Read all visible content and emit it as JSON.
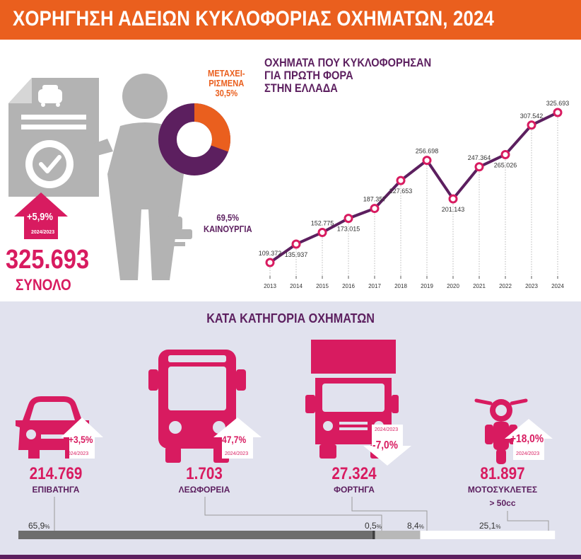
{
  "header": {
    "title": "ΧΟΡΗΓΗΣΗ ΑΔΕΙΩΝ ΚΥΚΛΟΦΟΡΙΑΣ ΟΧΗΜΑΤΩΝ, 2024"
  },
  "total": {
    "value": "325.693",
    "label": "ΣΥΝΟΛΟ",
    "change": "+5,9%",
    "change_period": "2024/2023"
  },
  "donut": {
    "used_label_1": "ΜΕΤΑΧΕΙ-",
    "used_label_2": "ΡΙΣΜΕΝΑ",
    "used_pct": "30,5%",
    "new_pct": "69,5%",
    "new_label": "ΚΑΙΝΟΥΡΓΙΑ",
    "used_share": 30.5,
    "new_share": 69.5,
    "colors": {
      "used": "#ea5f1e",
      "new": "#5c1f5f"
    }
  },
  "line_chart": {
    "title_lines": [
      "ΟΧΗΜΑΤΑ ΠΟΥ ΚΥΚΛΟΦΟΡΗΣΑΝ",
      "ΓΙΑ ΠΡΩΤΗ ΦΟΡΑ",
      "ΣΤΗΝ ΕΛΛΑΔΑ"
    ]
  },
  "chart_data": {
    "type": "line",
    "title": "ΟΧΗΜΑΤΑ ΠΟΥ ΚΥΚΛΟΦΟΡΗΣΑΝ ΓΙΑ ΠΡΩΤΗ ΦΟΡΑ ΣΤΗΝ ΕΛΛΑΔΑ",
    "x": [
      "2013",
      "2014",
      "2015",
      "2016",
      "2017",
      "2018",
      "2019",
      "2020",
      "2021",
      "2022",
      "2023",
      "2024"
    ],
    "values": [
      109372,
      135937,
      152775,
      173015,
      187357,
      227653,
      256698,
      201143,
      247364,
      265026,
      307542,
      325693
    ],
    "value_labels": [
      "109.372",
      "135.937",
      "152.775",
      "173.015",
      "187.357",
      "227.653",
      "256.698",
      "201.143",
      "247.364",
      "265.026",
      "307.542",
      "325.693"
    ],
    "label_above": [
      true,
      false,
      true,
      false,
      true,
      false,
      true,
      false,
      true,
      false,
      true,
      true
    ],
    "ylim": [
      90000,
      340000
    ],
    "grid": false,
    "colors": {
      "line": "#5c1f5f",
      "marker": "#d81b60"
    }
  },
  "categories": {
    "title": "ΚΑΤΑ ΚΑΤΗΓΟΡΙΑ ΟΧΗΜΑΤΩΝ",
    "items": [
      {
        "name": "passenger",
        "value": "214.769",
        "label": "ΕΠΙΒΑΤΗΓΑ",
        "label2": "",
        "change": "+3,5%",
        "change_period": "2024/2023",
        "direction": "up",
        "share_label": "65,9",
        "share": 65.9
      },
      {
        "name": "buses",
        "value": "1.703",
        "label": "ΛΕΩΦΟΡΕΙΑ",
        "label2": "",
        "change": "+47,7%",
        "change_period": "2024/2023",
        "direction": "up",
        "share_label": "0,5",
        "share": 0.5
      },
      {
        "name": "trucks",
        "value": "27.324",
        "label": "ΦΟΡΤΗΓΑ",
        "label2": "",
        "change": "-7,0%",
        "change_period": "2024/2023",
        "direction": "down",
        "share_label": "8,4",
        "share": 8.4
      },
      {
        "name": "motorcycles",
        "value": "81.897",
        "label": "ΜΟΤΟΣΥΚΛΕΤΕΣ",
        "label2": "> 50cc",
        "change": "+18,0%",
        "change_period": "2024/2023",
        "direction": "up",
        "share_label": "25,1",
        "share": 25.1
      }
    ],
    "pct_sign": "%",
    "colors": {
      "accent": "#d81b60",
      "bar1": "#6d6d6d",
      "bar2": "#3f3f3f",
      "bar3": "#b8b8b8",
      "bar4": "#ffffff"
    }
  }
}
